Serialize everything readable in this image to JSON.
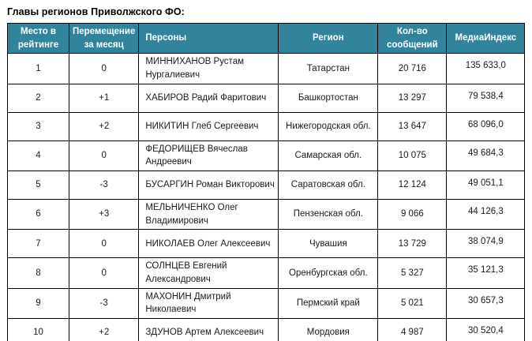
{
  "title": "Главы регионов Приволжского ФО:",
  "colors": {
    "header_bg": "#31849B",
    "header_text": "#FFFFFF",
    "border": "#000000",
    "body_text": "#1A1A1A"
  },
  "table": {
    "headers": [
      "Место в рейтинге",
      "Перемещение за месяц",
      "Персоны",
      "Регион",
      "Кол-во сообщений",
      "МедиаИндекс"
    ],
    "rows": [
      {
        "rank": "1",
        "change": "0",
        "person": "МИННИХАНОВ Рустам Нургалиевич",
        "region": "Татарстан",
        "messages": "20 716",
        "media_index": "135 633,0"
      },
      {
        "rank": "2",
        "change": "+1",
        "person": "ХАБИРОВ Радий Фаритович",
        "region": "Башкортостан",
        "messages": "13 297",
        "media_index": "79 538,4"
      },
      {
        "rank": "3",
        "change": "+2",
        "person": "НИКИТИН Глеб Сергеевич",
        "region": "Нижегородская обл.",
        "messages": "13 647",
        "media_index": "68 096,0"
      },
      {
        "rank": "4",
        "change": "0",
        "person": "ФЕДОРИЩЕВ Вячеслав Андреевич",
        "region": "Самарская обл.",
        "messages": "10 075",
        "media_index": "49 684,3"
      },
      {
        "rank": "5",
        "change": "-3",
        "person": "БУСАРГИН Роман Викторович",
        "region": "Саратовская обл.",
        "messages": "12 124",
        "media_index": "49 051,1"
      },
      {
        "rank": "6",
        "change": "+3",
        "person": "МЕЛЬНИЧЕНКО Олег Владимирович",
        "region": "Пензенская обл.",
        "messages": "9 066",
        "media_index": "44 126,3"
      },
      {
        "rank": "7",
        "change": "0",
        "person": "НИКОЛАЕВ Олег Алексеевич",
        "region": "Чувашия",
        "messages": "13 729",
        "media_index": "38 074,9"
      },
      {
        "rank": "8",
        "change": "0",
        "person": "СОЛНЦЕВ Евгений Александрович",
        "region": "Оренбургская обл.",
        "messages": "5 327",
        "media_index": "35 121,3"
      },
      {
        "rank": "9",
        "change": "-3",
        "person": "МАХОНИН Дмитрий Николаевич",
        "region": "Пермский край",
        "messages": "5 021",
        "media_index": "30 657,3"
      },
      {
        "rank": "10",
        "change": "+2",
        "person": "ЗДУНОВ Артем Алексеевич",
        "region": "Мордовия",
        "messages": "4 987",
        "media_index": "30 520,4"
      }
    ]
  }
}
